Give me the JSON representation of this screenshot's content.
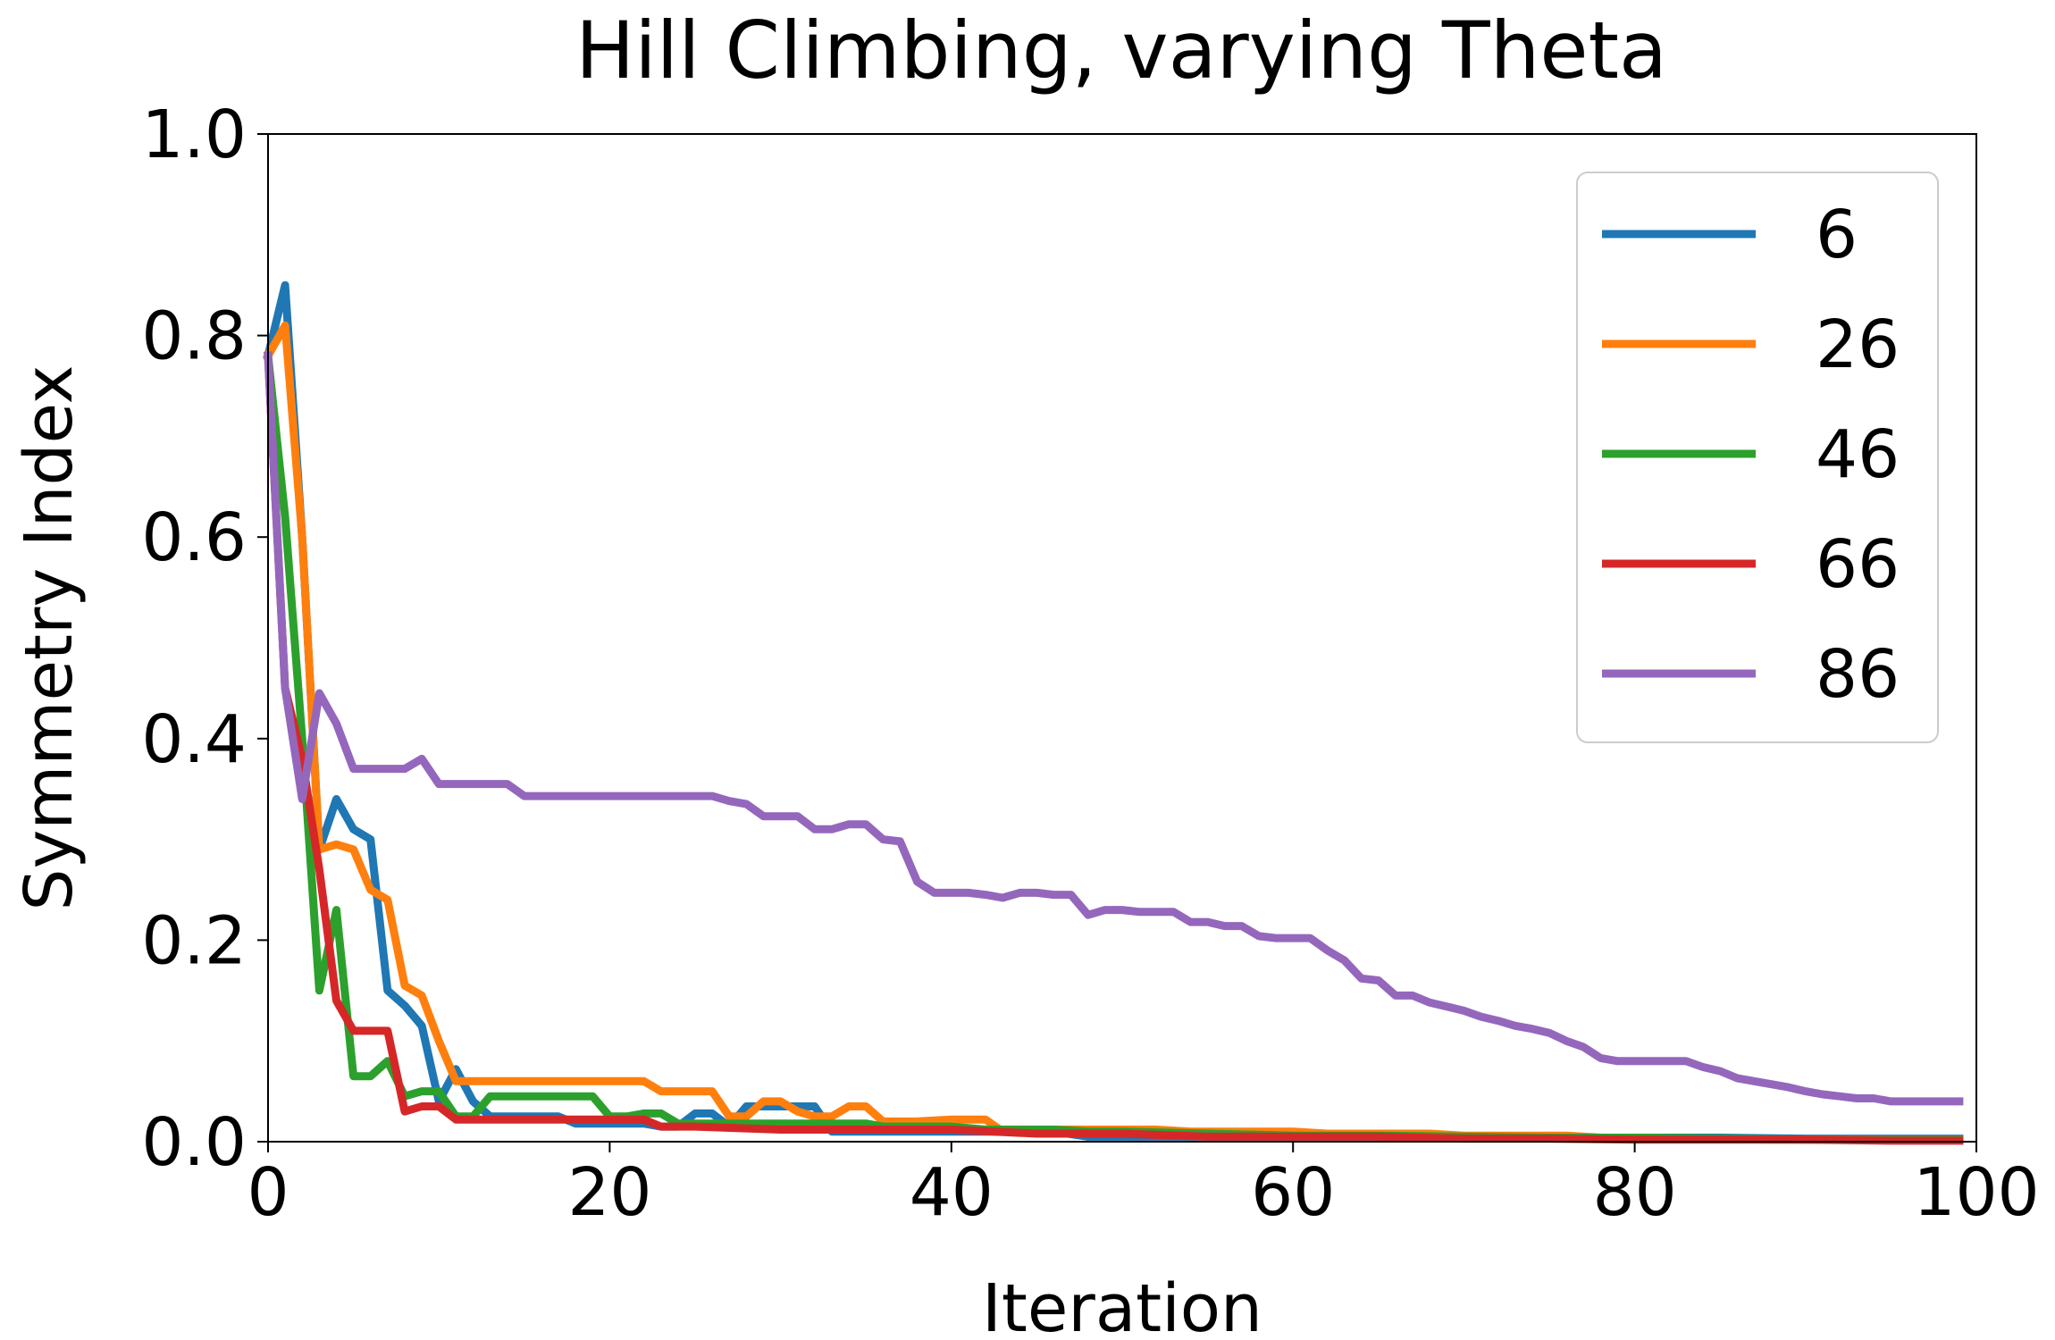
{
  "chart_data": {
    "type": "line",
    "title": "Hill Climbing, varying Theta",
    "xlabel": "Iteration",
    "ylabel": "Symmetry Index",
    "xlim": [
      0,
      100
    ],
    "ylim": [
      0,
      1.0
    ],
    "xticks": [
      "0",
      "20",
      "40",
      "60",
      "80",
      "100"
    ],
    "yticks": [
      "0.0",
      "0.2",
      "0.4",
      "0.6",
      "0.8",
      "1.0"
    ],
    "grid": false,
    "legend_position": "top-right",
    "series": [
      {
        "name": "6",
        "color": "#1f77b4",
        "x": [
          0,
          1,
          2,
          3,
          4,
          5,
          6,
          7,
          8,
          9,
          10,
          11,
          12,
          13,
          14,
          15,
          16,
          17,
          18,
          19,
          20,
          22,
          23,
          24,
          25,
          26,
          27,
          28,
          29,
          30,
          31,
          32,
          33,
          34,
          36,
          38,
          40,
          42,
          44,
          46,
          48,
          50,
          55,
          60,
          65,
          70,
          75,
          80,
          85,
          90,
          95,
          99
        ],
        "y": [
          0.78,
          0.85,
          0.6,
          0.29,
          0.34,
          0.31,
          0.3,
          0.15,
          0.135,
          0.115,
          0.04,
          0.072,
          0.04,
          0.025,
          0.025,
          0.025,
          0.025,
          0.025,
          0.018,
          0.018,
          0.018,
          0.018,
          0.015,
          0.015,
          0.028,
          0.028,
          0.015,
          0.035,
          0.035,
          0.035,
          0.035,
          0.035,
          0.01,
          0.01,
          0.01,
          0.01,
          0.01,
          0.01,
          0.01,
          0.01,
          0.005,
          0.005,
          0.005,
          0.005,
          0.005,
          0.004,
          0.004,
          0.004,
          0.004,
          0.003,
          0.003,
          0.003
        ]
      },
      {
        "name": "26",
        "color": "#ff7f0e",
        "x": [
          0,
          1,
          2,
          3,
          4,
          5,
          6,
          7,
          8,
          9,
          10,
          11,
          12,
          13,
          14,
          15,
          16,
          17,
          18,
          19,
          20,
          21,
          22,
          23,
          24,
          25,
          26,
          27,
          28,
          29,
          30,
          31,
          32,
          33,
          34,
          35,
          36,
          38,
          40,
          41,
          42,
          43,
          44,
          46,
          48,
          50,
          52,
          54,
          56,
          58,
          60,
          62,
          64,
          66,
          68,
          70,
          72,
          74,
          76,
          78,
          80,
          84,
          88,
          92,
          96,
          99
        ],
        "y": [
          0.78,
          0.81,
          0.6,
          0.29,
          0.295,
          0.29,
          0.25,
          0.24,
          0.155,
          0.145,
          0.1,
          0.06,
          0.06,
          0.06,
          0.06,
          0.06,
          0.06,
          0.06,
          0.06,
          0.06,
          0.06,
          0.06,
          0.06,
          0.05,
          0.05,
          0.05,
          0.05,
          0.025,
          0.025,
          0.04,
          0.04,
          0.03,
          0.025,
          0.025,
          0.035,
          0.035,
          0.02,
          0.02,
          0.022,
          0.022,
          0.022,
          0.01,
          0.012,
          0.012,
          0.012,
          0.012,
          0.012,
          0.01,
          0.01,
          0.01,
          0.01,
          0.008,
          0.008,
          0.008,
          0.008,
          0.006,
          0.006,
          0.006,
          0.006,
          0.004,
          0.004,
          0.003,
          0.002,
          0.002,
          0.002,
          0.002
        ]
      },
      {
        "name": "46",
        "color": "#2ca02c",
        "x": [
          0,
          1,
          2,
          3,
          4,
          5,
          6,
          7,
          8,
          9,
          10,
          11,
          12,
          13,
          14,
          15,
          16,
          17,
          18,
          19,
          20,
          21,
          22,
          23,
          24,
          25,
          26,
          27,
          28,
          29,
          30,
          31,
          32,
          33,
          34,
          35,
          36,
          38,
          40,
          42,
          44,
          46,
          48,
          50,
          55,
          60,
          65,
          70,
          75,
          80,
          85,
          90,
          95,
          99
        ],
        "y": [
          0.78,
          0.62,
          0.4,
          0.15,
          0.23,
          0.065,
          0.065,
          0.08,
          0.045,
          0.05,
          0.05,
          0.025,
          0.025,
          0.045,
          0.045,
          0.045,
          0.045,
          0.045,
          0.045,
          0.045,
          0.025,
          0.025,
          0.028,
          0.028,
          0.018,
          0.018,
          0.018,
          0.018,
          0.018,
          0.018,
          0.018,
          0.018,
          0.018,
          0.018,
          0.018,
          0.018,
          0.015,
          0.015,
          0.015,
          0.012,
          0.012,
          0.012,
          0.01,
          0.01,
          0.008,
          0.006,
          0.006,
          0.005,
          0.004,
          0.004,
          0.003,
          0.002,
          0.002,
          0.002
        ]
      },
      {
        "name": "66",
        "color": "#d62728",
        "x": [
          0,
          1,
          2,
          3,
          4,
          5,
          6,
          7,
          8,
          9,
          10,
          11,
          12,
          14,
          16,
          18,
          20,
          22,
          23,
          25,
          30,
          35,
          40,
          45,
          50,
          55,
          60,
          65,
          70,
          75,
          80,
          85,
          90,
          95,
          99
        ],
        "y": [
          0.78,
          0.45,
          0.38,
          0.27,
          0.14,
          0.11,
          0.11,
          0.11,
          0.03,
          0.035,
          0.035,
          0.022,
          0.022,
          0.022,
          0.022,
          0.022,
          0.022,
          0.022,
          0.015,
          0.015,
          0.012,
          0.012,
          0.012,
          0.008,
          0.008,
          0.005,
          0.005,
          0.005,
          0.003,
          0.003,
          0.002,
          0.002,
          0.002,
          0.001,
          0.001
        ]
      },
      {
        "name": "86",
        "color": "#9467bd",
        "x": [
          0,
          1,
          2,
          3,
          4,
          5,
          6,
          7,
          8,
          9,
          10,
          11,
          12,
          13,
          14,
          15,
          16,
          17,
          18,
          19,
          20,
          21,
          22,
          23,
          24,
          25,
          26,
          27,
          28,
          29,
          30,
          31,
          32,
          33,
          34,
          35,
          36,
          37,
          38,
          39,
          40,
          41,
          42,
          43,
          44,
          45,
          46,
          47,
          48,
          49,
          50,
          51,
          52,
          53,
          54,
          55,
          56,
          57,
          58,
          59,
          60,
          61,
          62,
          63,
          64,
          65,
          66,
          67,
          68,
          69,
          70,
          71,
          72,
          73,
          74,
          75,
          76,
          77,
          78,
          79,
          80,
          81,
          82,
          83,
          84,
          85,
          86,
          87,
          88,
          89,
          90,
          91,
          92,
          93,
          94,
          95,
          96,
          97,
          98,
          99
        ],
        "y": [
          0.78,
          0.45,
          0.34,
          0.445,
          0.415,
          0.37,
          0.37,
          0.37,
          0.37,
          0.38,
          0.355,
          0.355,
          0.355,
          0.355,
          0.355,
          0.343,
          0.343,
          0.343,
          0.343,
          0.343,
          0.343,
          0.343,
          0.343,
          0.343,
          0.343,
          0.343,
          0.343,
          0.338,
          0.335,
          0.323,
          0.323,
          0.323,
          0.31,
          0.31,
          0.315,
          0.315,
          0.3,
          0.298,
          0.258,
          0.247,
          0.247,
          0.247,
          0.245,
          0.242,
          0.247,
          0.247,
          0.245,
          0.245,
          0.225,
          0.23,
          0.23,
          0.228,
          0.228,
          0.228,
          0.218,
          0.218,
          0.214,
          0.214,
          0.204,
          0.202,
          0.202,
          0.202,
          0.19,
          0.18,
          0.162,
          0.16,
          0.145,
          0.145,
          0.138,
          0.134,
          0.13,
          0.124,
          0.12,
          0.115,
          0.112,
          0.108,
          0.1,
          0.094,
          0.083,
          0.08,
          0.08,
          0.08,
          0.08,
          0.08,
          0.074,
          0.07,
          0.063,
          0.06,
          0.057,
          0.054,
          0.05,
          0.047,
          0.045,
          0.043,
          0.043,
          0.04,
          0.04,
          0.04,
          0.04,
          0.04
        ]
      }
    ]
  }
}
